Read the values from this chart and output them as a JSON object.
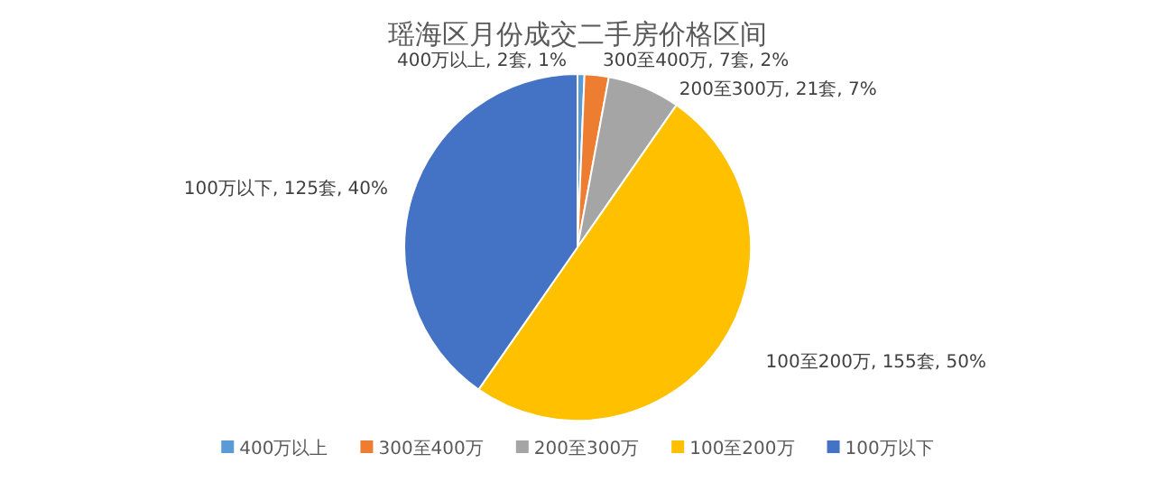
{
  "chart_data": {
    "type": "pie",
    "title": "瑶海区月份成交二手房价格区间",
    "categories": [
      "400万以上",
      "300至400万",
      "200至300万",
      "100至200万",
      "100万以下"
    ],
    "values": [
      2,
      7,
      21,
      155,
      125
    ],
    "colors": [
      "#5b9bd5",
      "#ed7d31",
      "#a5a5a5",
      "#ffc000",
      "#4472c4"
    ],
    "value_labels": [
      "400万以上, 2套, 1%",
      "300至400万, 7套, 2%",
      "200至300万, 21套, 7%",
      "100至200万, 155套, 50%",
      "100万以下, 125套, 40%"
    ],
    "legend": "bottom"
  }
}
